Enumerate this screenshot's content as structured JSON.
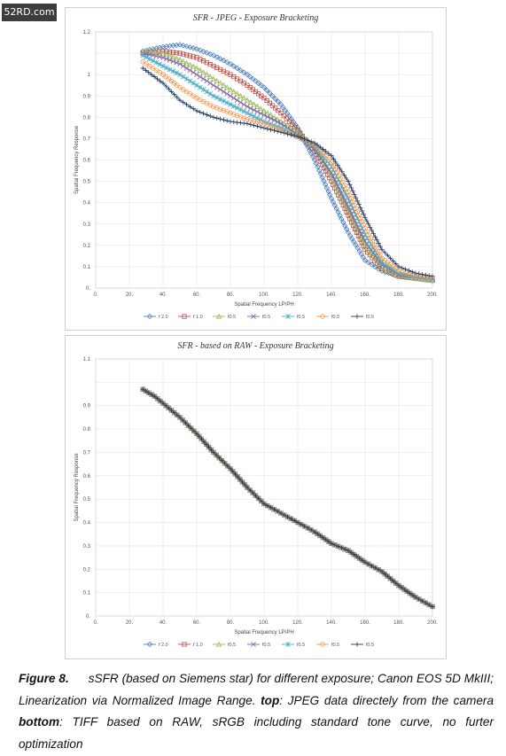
{
  "watermark": "52RD.com",
  "charts": [
    {
      "type": "line",
      "title": "SFR - JPEG - Exposure Bracketing",
      "xlabel": "Spatial Frequency  LP/PH",
      "ylabel": "Spatial Frequency Response",
      "xlim": [
        0,
        200
      ],
      "ylim": [
        0,
        1.2
      ],
      "x_tick_labels": [
        "0.",
        "20.",
        "40.",
        "60.",
        "80.",
        "100.",
        "120.",
        "140.",
        "160.",
        "180.",
        "200."
      ],
      "y_tick_labels": [
        "0.",
        "0.1",
        "0.2",
        "0.3",
        "0.4",
        "0.5",
        "0.6",
        "0.7",
        "0.8",
        "0.9",
        "1",
        "1.2"
      ],
      "legend_position": "bottom",
      "grid": true,
      "series": [
        {
          "name": "f 2.0",
          "marker": "diamond",
          "color": "#4f81bd",
          "x": [
            28,
            40,
            50,
            60,
            70,
            80,
            90,
            100,
            110,
            120,
            130,
            140,
            150,
            160,
            170,
            180,
            190,
            200
          ],
          "y": [
            1.11,
            1.13,
            1.14,
            1.12,
            1.09,
            1.05,
            1.0,
            0.94,
            0.86,
            0.75,
            0.6,
            0.42,
            0.26,
            0.13,
            0.08,
            0.055,
            0.045,
            0.035
          ]
        },
        {
          "name": "f 1.0",
          "marker": "square",
          "color": "#c0504d",
          "x": [
            28,
            40,
            50,
            60,
            70,
            80,
            90,
            100,
            110,
            120,
            130,
            140,
            150,
            160,
            170,
            180,
            190,
            200
          ],
          "y": [
            1.1,
            1.11,
            1.1,
            1.08,
            1.04,
            1.0,
            0.95,
            0.89,
            0.82,
            0.74,
            0.64,
            0.5,
            0.34,
            0.18,
            0.09,
            0.055,
            0.045,
            0.035
          ]
        },
        {
          "name": "f0.5",
          "marker": "triangle",
          "color": "#9bbb59",
          "x": [
            28,
            40,
            50,
            60,
            70,
            80,
            90,
            100,
            110,
            120,
            130,
            140,
            150,
            160,
            170,
            180,
            190,
            200
          ],
          "y": [
            1.11,
            1.1,
            1.07,
            1.03,
            0.98,
            0.93,
            0.88,
            0.83,
            0.78,
            0.73,
            0.66,
            0.53,
            0.36,
            0.2,
            0.1,
            0.06,
            0.045,
            0.035
          ]
        },
        {
          "name": "f0.5",
          "marker": "x",
          "color": "#8064a2",
          "x": [
            28,
            40,
            50,
            60,
            70,
            80,
            90,
            100,
            110,
            120,
            130,
            140,
            150,
            160,
            170,
            180,
            190,
            200
          ],
          "y": [
            1.1,
            1.08,
            1.05,
            1.0,
            0.95,
            0.9,
            0.85,
            0.81,
            0.77,
            0.72,
            0.65,
            0.54,
            0.38,
            0.22,
            0.11,
            0.065,
            0.05,
            0.04
          ]
        },
        {
          "name": "f0.5",
          "marker": "star",
          "color": "#4bacc6",
          "x": [
            28,
            40,
            50,
            60,
            70,
            80,
            90,
            100,
            110,
            120,
            130,
            140,
            150,
            160,
            170,
            180,
            190,
            200
          ],
          "y": [
            1.09,
            1.04,
            1.0,
            0.95,
            0.9,
            0.86,
            0.82,
            0.78,
            0.75,
            0.71,
            0.66,
            0.57,
            0.42,
            0.25,
            0.12,
            0.07,
            0.05,
            0.04
          ]
        },
        {
          "name": "f0.5",
          "marker": "circle",
          "color": "#f79646",
          "x": [
            28,
            40,
            50,
            60,
            70,
            80,
            90,
            100,
            110,
            120,
            130,
            140,
            150,
            160,
            170,
            180,
            190,
            200
          ],
          "y": [
            1.06,
            1.0,
            0.94,
            0.89,
            0.85,
            0.82,
            0.79,
            0.77,
            0.74,
            0.71,
            0.67,
            0.59,
            0.45,
            0.28,
            0.14,
            0.08,
            0.055,
            0.045
          ]
        },
        {
          "name": "f0.5",
          "marker": "plus",
          "color": "#1f3864",
          "x": [
            28,
            40,
            50,
            60,
            70,
            80,
            90,
            100,
            110,
            120,
            130,
            140,
            150,
            160,
            170,
            180,
            190,
            200
          ],
          "y": [
            1.03,
            0.96,
            0.88,
            0.83,
            0.8,
            0.78,
            0.77,
            0.75,
            0.73,
            0.71,
            0.68,
            0.62,
            0.5,
            0.33,
            0.18,
            0.1,
            0.07,
            0.055
          ]
        }
      ]
    },
    {
      "type": "line",
      "title": "SFR - based on RAW - Exposure Bracketing",
      "xlabel": "Spatial Frequency  LP/PH",
      "ylabel": "Spatial Frequency Response",
      "xlim": [
        0,
        200
      ],
      "ylim": [
        0,
        1.1
      ],
      "x_tick_labels": [
        "0.",
        "20.",
        "40.",
        "60.",
        "80.",
        "100.",
        "120.",
        "140.",
        "160.",
        "180.",
        "200."
      ],
      "y_tick_labels": [
        "0.",
        "0.1",
        "0.2",
        "0.3",
        "0.4",
        "0.5",
        "0.6",
        "0.7",
        "0.8",
        "0.9",
        "1.1"
      ],
      "legend_position": "bottom",
      "grid": true,
      "series": [
        {
          "name": "f 2.0",
          "marker": "diamond",
          "color": "#4f81bd",
          "x": [
            28,
            35,
            40,
            50,
            60,
            70,
            80,
            90,
            100,
            110,
            120,
            130,
            140,
            150,
            160,
            170,
            180,
            190,
            200
          ],
          "y": [
            0.97,
            0.94,
            0.91,
            0.85,
            0.78,
            0.7,
            0.63,
            0.55,
            0.48,
            0.44,
            0.4,
            0.36,
            0.31,
            0.28,
            0.23,
            0.19,
            0.13,
            0.08,
            0.04
          ]
        },
        {
          "name": "f 1.0",
          "marker": "square",
          "color": "#c0504d",
          "x": [
            28,
            35,
            40,
            50,
            60,
            70,
            80,
            90,
            100,
            110,
            120,
            130,
            140,
            150,
            160,
            170,
            180,
            190,
            200
          ],
          "y": [
            0.97,
            0.94,
            0.91,
            0.85,
            0.78,
            0.7,
            0.63,
            0.55,
            0.48,
            0.44,
            0.4,
            0.36,
            0.31,
            0.28,
            0.23,
            0.19,
            0.13,
            0.08,
            0.04
          ]
        },
        {
          "name": "f0.5",
          "marker": "triangle",
          "color": "#9bbb59",
          "x": [
            28,
            35,
            40,
            50,
            60,
            70,
            80,
            90,
            100,
            110,
            120,
            130,
            140,
            150,
            160,
            170,
            180,
            190,
            200
          ],
          "y": [
            0.97,
            0.94,
            0.91,
            0.85,
            0.78,
            0.7,
            0.63,
            0.55,
            0.48,
            0.44,
            0.4,
            0.36,
            0.31,
            0.28,
            0.23,
            0.19,
            0.13,
            0.08,
            0.04
          ]
        },
        {
          "name": "f0.5",
          "marker": "x",
          "color": "#8064a2",
          "x": [
            28,
            35,
            40,
            50,
            60,
            70,
            80,
            90,
            100,
            110,
            120,
            130,
            140,
            150,
            160,
            170,
            180,
            190,
            200
          ],
          "y": [
            0.97,
            0.94,
            0.91,
            0.85,
            0.78,
            0.7,
            0.63,
            0.55,
            0.48,
            0.44,
            0.4,
            0.36,
            0.31,
            0.28,
            0.23,
            0.19,
            0.13,
            0.08,
            0.04
          ]
        },
        {
          "name": "f0.5",
          "marker": "star",
          "color": "#4bacc6",
          "x": [
            28,
            35,
            40,
            50,
            60,
            70,
            80,
            90,
            100,
            110,
            120,
            130,
            140,
            150,
            160,
            170,
            180,
            190,
            200
          ],
          "y": [
            0.97,
            0.94,
            0.91,
            0.85,
            0.78,
            0.7,
            0.63,
            0.55,
            0.48,
            0.44,
            0.4,
            0.36,
            0.31,
            0.28,
            0.23,
            0.19,
            0.13,
            0.08,
            0.04
          ]
        },
        {
          "name": "f0.5",
          "marker": "circle",
          "color": "#f79646",
          "x": [
            28,
            35,
            40,
            50,
            60,
            70,
            80,
            90,
            100,
            110,
            120,
            130,
            140,
            150,
            160,
            170,
            180,
            190,
            200
          ],
          "y": [
            0.97,
            0.94,
            0.91,
            0.85,
            0.78,
            0.7,
            0.63,
            0.55,
            0.48,
            0.44,
            0.4,
            0.36,
            0.31,
            0.28,
            0.23,
            0.19,
            0.13,
            0.08,
            0.04
          ]
        },
        {
          "name": "f0.5",
          "marker": "plus",
          "color": "#1f3864",
          "x": [
            28,
            35,
            40,
            50,
            60,
            70,
            80,
            90,
            100,
            110,
            120,
            130,
            140,
            150,
            160,
            170,
            180,
            190,
            200
          ],
          "y": [
            0.97,
            0.94,
            0.91,
            0.85,
            0.78,
            0.7,
            0.63,
            0.55,
            0.48,
            0.44,
            0.4,
            0.36,
            0.31,
            0.28,
            0.23,
            0.19,
            0.13,
            0.08,
            0.04
          ]
        }
      ]
    }
  ],
  "caption": {
    "label": "Figure 8.",
    "text_1": "sSFR (based on Siemens star) for different exposure; Canon EOS 5D MkIII; Linearization via Normalized Image Range.",
    "top_label": "top",
    "text_2": ": JPEG data directely from the camera",
    "bottom_label": "bottom",
    "text_3": ": TIFF based on RAW, sRGB including standard tone curve, no furter optimization"
  }
}
